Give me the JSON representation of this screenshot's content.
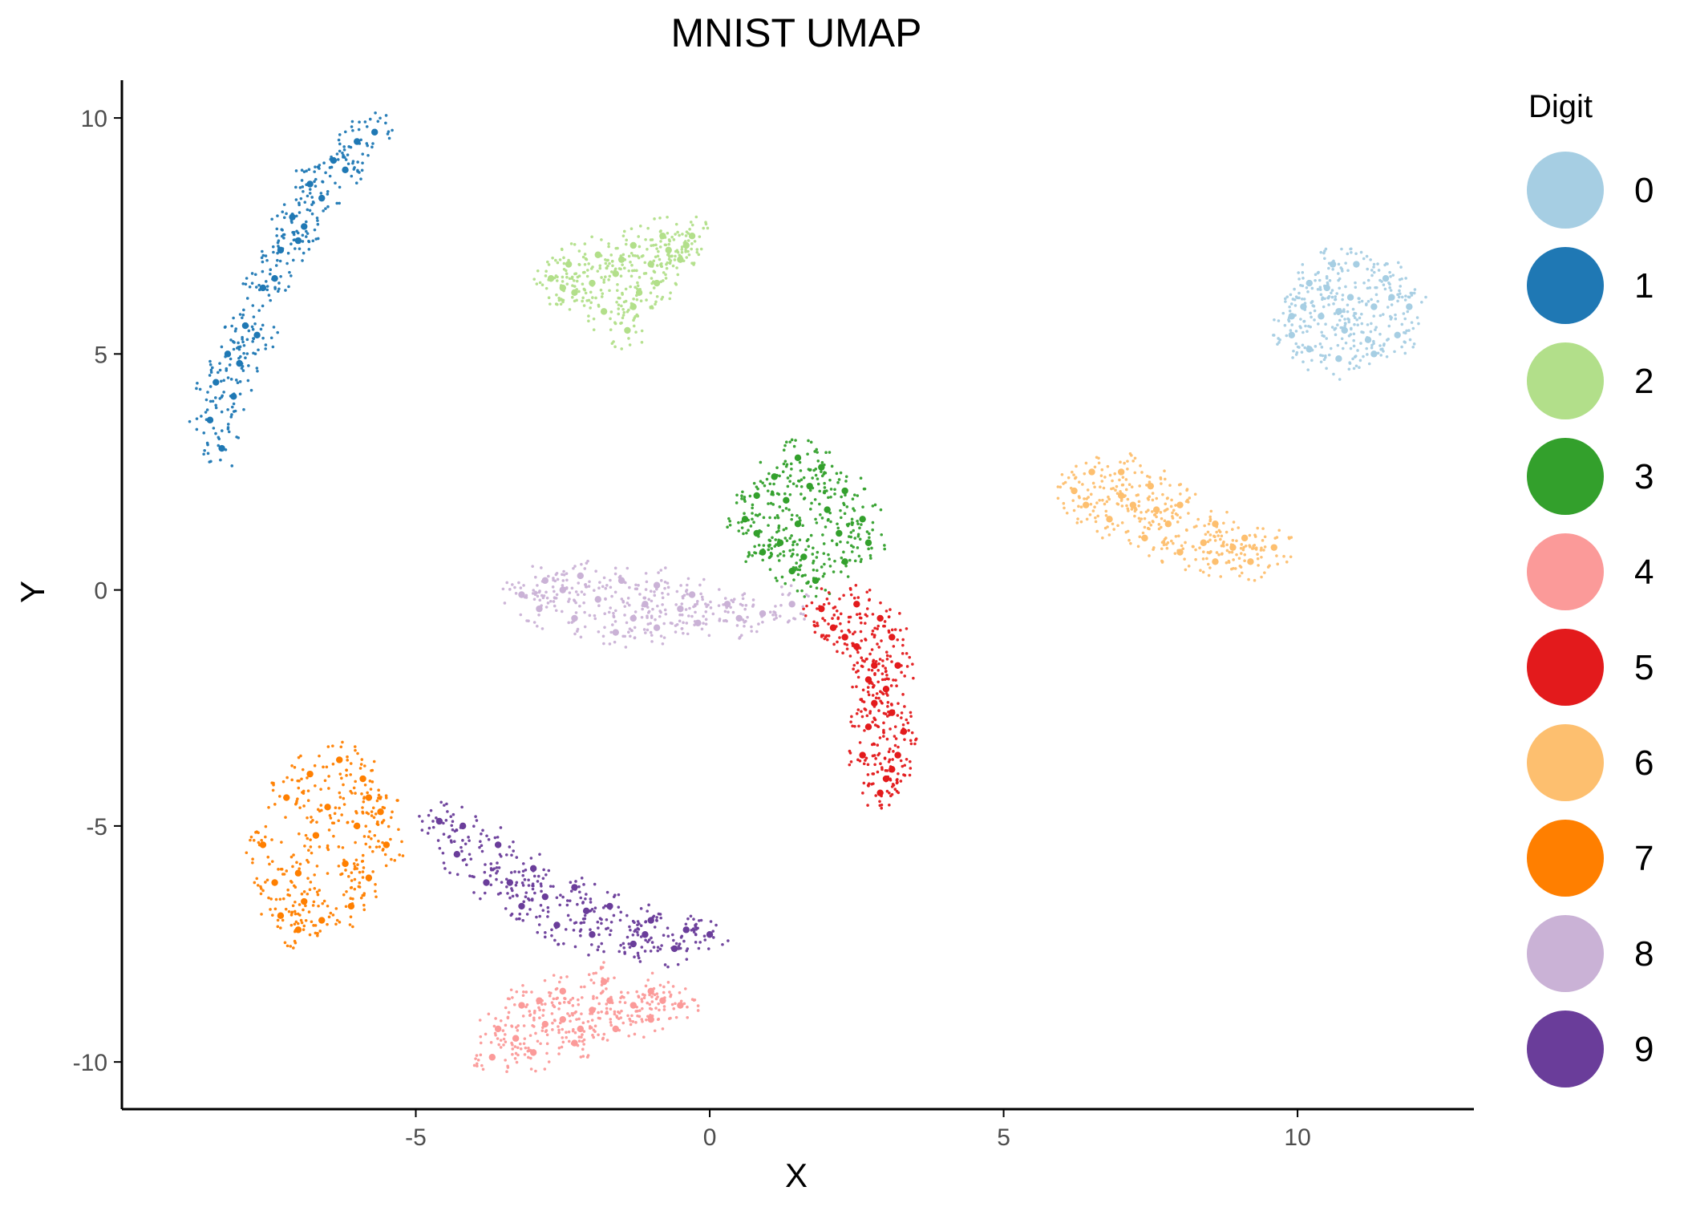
{
  "chart_data": {
    "type": "scatter",
    "title": "MNIST UMAP",
    "xlabel": "X",
    "ylabel": "Y",
    "xlim": [
      -10.0,
      13.0
    ],
    "ylim": [
      -11.0,
      10.8
    ],
    "x_ticks": [
      -5,
      0,
      5,
      10
    ],
    "x_tick_labels": [
      "-5",
      "0",
      "5",
      "10"
    ],
    "y_ticks": [
      -10,
      -5,
      0,
      5,
      10
    ],
    "y_tick_labels": [
      "-10",
      "-5",
      "0",
      "5",
      "10"
    ],
    "grid": false,
    "legend": {
      "title": "Digit",
      "position": "right",
      "entries": [
        {
          "label": "0",
          "color": "#A6CEE3"
        },
        {
          "label": "1",
          "color": "#1F78B4"
        },
        {
          "label": "2",
          "color": "#B2DF8A"
        },
        {
          "label": "3",
          "color": "#33A02C"
        },
        {
          "label": "4",
          "color": "#FB9A99"
        },
        {
          "label": "5",
          "color": "#E31A1C"
        },
        {
          "label": "6",
          "color": "#FDBF6F"
        },
        {
          "label": "7",
          "color": "#FF7F00"
        },
        {
          "label": "8",
          "color": "#CAB2D6"
        },
        {
          "label": "9",
          "color": "#6A3D9A"
        }
      ]
    },
    "series": [
      {
        "name": "0",
        "color": "#A6CEE3",
        "points": [
          [
            9.9,
            5.8
          ],
          [
            10.2,
            6.5
          ],
          [
            10.6,
            6.9
          ],
          [
            11.0,
            6.9
          ],
          [
            11.5,
            6.6
          ],
          [
            11.9,
            6.0
          ],
          [
            11.7,
            5.4
          ],
          [
            11.3,
            5.0
          ],
          [
            10.7,
            4.9
          ],
          [
            10.2,
            5.1
          ],
          [
            9.9,
            5.4
          ],
          [
            10.4,
            5.8
          ],
          [
            10.9,
            6.2
          ],
          [
            11.3,
            6.0
          ],
          [
            10.8,
            5.5
          ],
          [
            10.5,
            6.4
          ],
          [
            11.2,
            5.3
          ],
          [
            10.1,
            6.0
          ],
          [
            11.6,
            6.2
          ],
          [
            10.7,
            5.9
          ]
        ]
      },
      {
        "name": "1",
        "color": "#1F78B4",
        "points": [
          [
            -8.3,
            3.0
          ],
          [
            -8.5,
            3.6
          ],
          [
            -8.4,
            4.4
          ],
          [
            -8.2,
            5.0
          ],
          [
            -7.9,
            5.6
          ],
          [
            -7.6,
            6.4
          ],
          [
            -7.3,
            7.2
          ],
          [
            -7.1,
            7.9
          ],
          [
            -6.8,
            8.6
          ],
          [
            -6.4,
            9.1
          ],
          [
            -6.0,
            9.5
          ],
          [
            -5.7,
            9.7
          ],
          [
            -7.0,
            7.4
          ],
          [
            -7.7,
            5.4
          ],
          [
            -8.1,
            4.1
          ],
          [
            -6.6,
            8.3
          ],
          [
            -7.4,
            6.6
          ],
          [
            -6.2,
            8.9
          ],
          [
            -8.0,
            4.8
          ],
          [
            -6.9,
            7.7
          ]
        ]
      },
      {
        "name": "2",
        "color": "#B2DF8A",
        "points": [
          [
            -2.7,
            6.6
          ],
          [
            -2.4,
            6.9
          ],
          [
            -1.9,
            7.1
          ],
          [
            -1.3,
            7.3
          ],
          [
            -0.8,
            7.5
          ],
          [
            -0.3,
            7.5
          ],
          [
            -0.5,
            7.0
          ],
          [
            -0.9,
            6.5
          ],
          [
            -1.3,
            6.0
          ],
          [
            -1.4,
            5.5
          ],
          [
            -1.8,
            5.9
          ],
          [
            -2.3,
            6.3
          ],
          [
            -1.6,
            6.7
          ],
          [
            -1.0,
            6.9
          ],
          [
            -2.0,
            6.5
          ],
          [
            -0.7,
            7.2
          ],
          [
            -1.2,
            6.3
          ],
          [
            -2.5,
            6.4
          ],
          [
            -1.5,
            7.0
          ],
          [
            -0.4,
            7.3
          ]
        ]
      },
      {
        "name": "3",
        "color": "#33A02C",
        "points": [
          [
            0.6,
            1.5
          ],
          [
            0.8,
            2.0
          ],
          [
            1.1,
            2.4
          ],
          [
            1.5,
            2.8
          ],
          [
            1.9,
            2.6
          ],
          [
            2.3,
            2.1
          ],
          [
            2.6,
            1.5
          ],
          [
            2.7,
            1.0
          ],
          [
            2.3,
            0.6
          ],
          [
            1.8,
            0.2
          ],
          [
            1.4,
            0.4
          ],
          [
            0.9,
            0.8
          ],
          [
            1.5,
            1.4
          ],
          [
            2.0,
            1.7
          ],
          [
            1.2,
            1.0
          ],
          [
            1.7,
            2.2
          ],
          [
            2.2,
            1.2
          ],
          [
            0.8,
            1.2
          ],
          [
            1.6,
            0.7
          ],
          [
            1.3,
            1.9
          ]
        ]
      },
      {
        "name": "4",
        "color": "#FB9A99",
        "points": [
          [
            -3.7,
            -9.9
          ],
          [
            -3.6,
            -9.3
          ],
          [
            -3.2,
            -8.8
          ],
          [
            -2.5,
            -8.5
          ],
          [
            -1.8,
            -8.3
          ],
          [
            -1.0,
            -8.5
          ],
          [
            -0.5,
            -8.8
          ],
          [
            -1.0,
            -9.1
          ],
          [
            -1.6,
            -9.3
          ],
          [
            -2.3,
            -9.6
          ],
          [
            -3.0,
            -9.8
          ],
          [
            -2.8,
            -9.2
          ],
          [
            -2.0,
            -8.9
          ],
          [
            -1.3,
            -8.8
          ],
          [
            -3.3,
            -9.5
          ],
          [
            -2.5,
            -9.1
          ],
          [
            -1.7,
            -8.7
          ],
          [
            -2.9,
            -8.7
          ],
          [
            -0.8,
            -8.7
          ],
          [
            -2.2,
            -9.3
          ]
        ]
      },
      {
        "name": "5",
        "color": "#E31A1C",
        "points": [
          [
            1.9,
            -0.4
          ],
          [
            2.1,
            -0.8
          ],
          [
            2.5,
            -1.2
          ],
          [
            2.8,
            -1.6
          ],
          [
            3.0,
            -2.1
          ],
          [
            3.1,
            -2.6
          ],
          [
            3.3,
            -3.0
          ],
          [
            3.2,
            -3.5
          ],
          [
            3.0,
            -4.0
          ],
          [
            2.9,
            -4.3
          ],
          [
            2.6,
            -3.5
          ],
          [
            2.7,
            -2.9
          ],
          [
            2.5,
            -0.3
          ],
          [
            2.9,
            -0.6
          ],
          [
            3.1,
            -1.0
          ],
          [
            3.2,
            -1.6
          ],
          [
            2.3,
            -1.0
          ],
          [
            2.8,
            -2.4
          ],
          [
            3.1,
            -3.8
          ],
          [
            2.7,
            -1.9
          ]
        ]
      },
      {
        "name": "6",
        "color": "#FDBF6F",
        "points": [
          [
            6.2,
            2.1
          ],
          [
            6.5,
            2.5
          ],
          [
            7.0,
            2.5
          ],
          [
            7.5,
            2.2
          ],
          [
            8.0,
            1.8
          ],
          [
            8.6,
            1.4
          ],
          [
            9.1,
            1.1
          ],
          [
            9.6,
            0.9
          ],
          [
            9.2,
            0.6
          ],
          [
            8.6,
            0.6
          ],
          [
            8.0,
            0.8
          ],
          [
            7.4,
            1.1
          ],
          [
            6.8,
            1.5
          ],
          [
            6.4,
            1.8
          ],
          [
            7.2,
            1.8
          ],
          [
            7.8,
            1.4
          ],
          [
            8.4,
            1.0
          ],
          [
            7.0,
            2.0
          ],
          [
            8.9,
            0.9
          ],
          [
            7.6,
            1.7
          ]
        ]
      },
      {
        "name": "7",
        "color": "#FF7F00",
        "points": [
          [
            -7.6,
            -5.4
          ],
          [
            -7.4,
            -6.2
          ],
          [
            -7.3,
            -6.9
          ],
          [
            -7.0,
            -7.2
          ],
          [
            -6.6,
            -7.0
          ],
          [
            -6.1,
            -6.7
          ],
          [
            -5.8,
            -6.1
          ],
          [
            -5.5,
            -5.4
          ],
          [
            -5.6,
            -4.7
          ],
          [
            -5.9,
            -4.0
          ],
          [
            -6.3,
            -3.6
          ],
          [
            -6.8,
            -3.9
          ],
          [
            -7.2,
            -4.4
          ],
          [
            -6.7,
            -5.2
          ],
          [
            -6.2,
            -5.8
          ],
          [
            -6.5,
            -4.6
          ],
          [
            -7.0,
            -6.0
          ],
          [
            -6.0,
            -5.0
          ],
          [
            -6.9,
            -6.6
          ],
          [
            -5.8,
            -4.4
          ]
        ]
      },
      {
        "name": "8",
        "color": "#CAB2D6",
        "points": [
          [
            -3.2,
            -0.1
          ],
          [
            -2.8,
            0.2
          ],
          [
            -2.2,
            0.3
          ],
          [
            -1.5,
            0.2
          ],
          [
            -0.9,
            0.1
          ],
          [
            -0.3,
            -0.1
          ],
          [
            0.3,
            -0.3
          ],
          [
            0.9,
            -0.5
          ],
          [
            1.4,
            -0.3
          ],
          [
            0.5,
            -0.6
          ],
          [
            -0.2,
            -0.7
          ],
          [
            -0.9,
            -0.8
          ],
          [
            -1.6,
            -0.9
          ],
          [
            -2.3,
            -0.6
          ],
          [
            -2.9,
            -0.4
          ],
          [
            -1.9,
            -0.2
          ],
          [
            -1.1,
            -0.3
          ],
          [
            -0.5,
            -0.4
          ],
          [
            -2.5,
            0.0
          ],
          [
            -1.3,
            -0.6
          ]
        ]
      },
      {
        "name": "9",
        "color": "#6A3D9A",
        "points": [
          [
            -4.6,
            -4.9
          ],
          [
            -4.2,
            -5.0
          ],
          [
            -3.6,
            -5.4
          ],
          [
            -3.0,
            -5.9
          ],
          [
            -2.3,
            -6.3
          ],
          [
            -1.7,
            -6.7
          ],
          [
            -1.0,
            -7.0
          ],
          [
            -0.4,
            -7.2
          ],
          [
            0.0,
            -7.3
          ],
          [
            -0.6,
            -7.6
          ],
          [
            -1.3,
            -7.5
          ],
          [
            -2.0,
            -7.3
          ],
          [
            -2.6,
            -7.1
          ],
          [
            -3.2,
            -6.7
          ],
          [
            -3.8,
            -6.2
          ],
          [
            -4.3,
            -5.6
          ],
          [
            -3.4,
            -6.2
          ],
          [
            -2.1,
            -6.8
          ],
          [
            -1.1,
            -7.3
          ],
          [
            -2.8,
            -6.5
          ]
        ]
      }
    ]
  }
}
